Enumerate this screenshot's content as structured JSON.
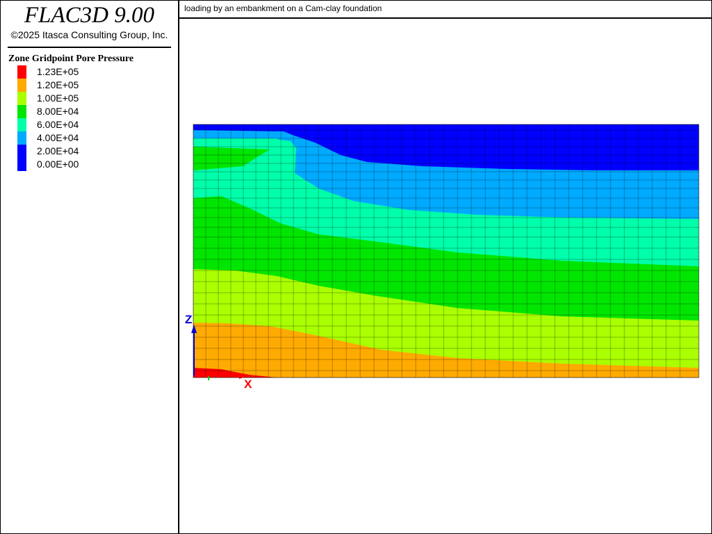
{
  "app": {
    "title": "FLAC3D 9.00",
    "copyright": "©2025 Itasca Consulting Group, Inc."
  },
  "plot": {
    "title": "loading by an embankment on a Cam-clay foundation"
  },
  "legend": {
    "title": "Zone Gridpoint Pore Pressure",
    "items": [
      {
        "label": "1.23E+05",
        "color": "#ff0000"
      },
      {
        "label": "1.20E+05",
        "color": "#ffaa00"
      },
      {
        "label": "1.00E+05",
        "color": "#aaff00"
      },
      {
        "label": "8.00E+04",
        "color": "#00e600"
      },
      {
        "label": "6.00E+04",
        "color": "#00ffaa"
      },
      {
        "label": "4.00E+04",
        "color": "#00aaff"
      },
      {
        "label": "2.00E+04",
        "color": "#0000ff"
      },
      {
        "label": "0.00E+00",
        "color": "#0000ff"
      }
    ]
  },
  "axes": {
    "z_label": "Z",
    "x_label": "X",
    "z_color": "#0000cc",
    "x_color": "#ff0000",
    "y_color": "#00cc00"
  }
}
